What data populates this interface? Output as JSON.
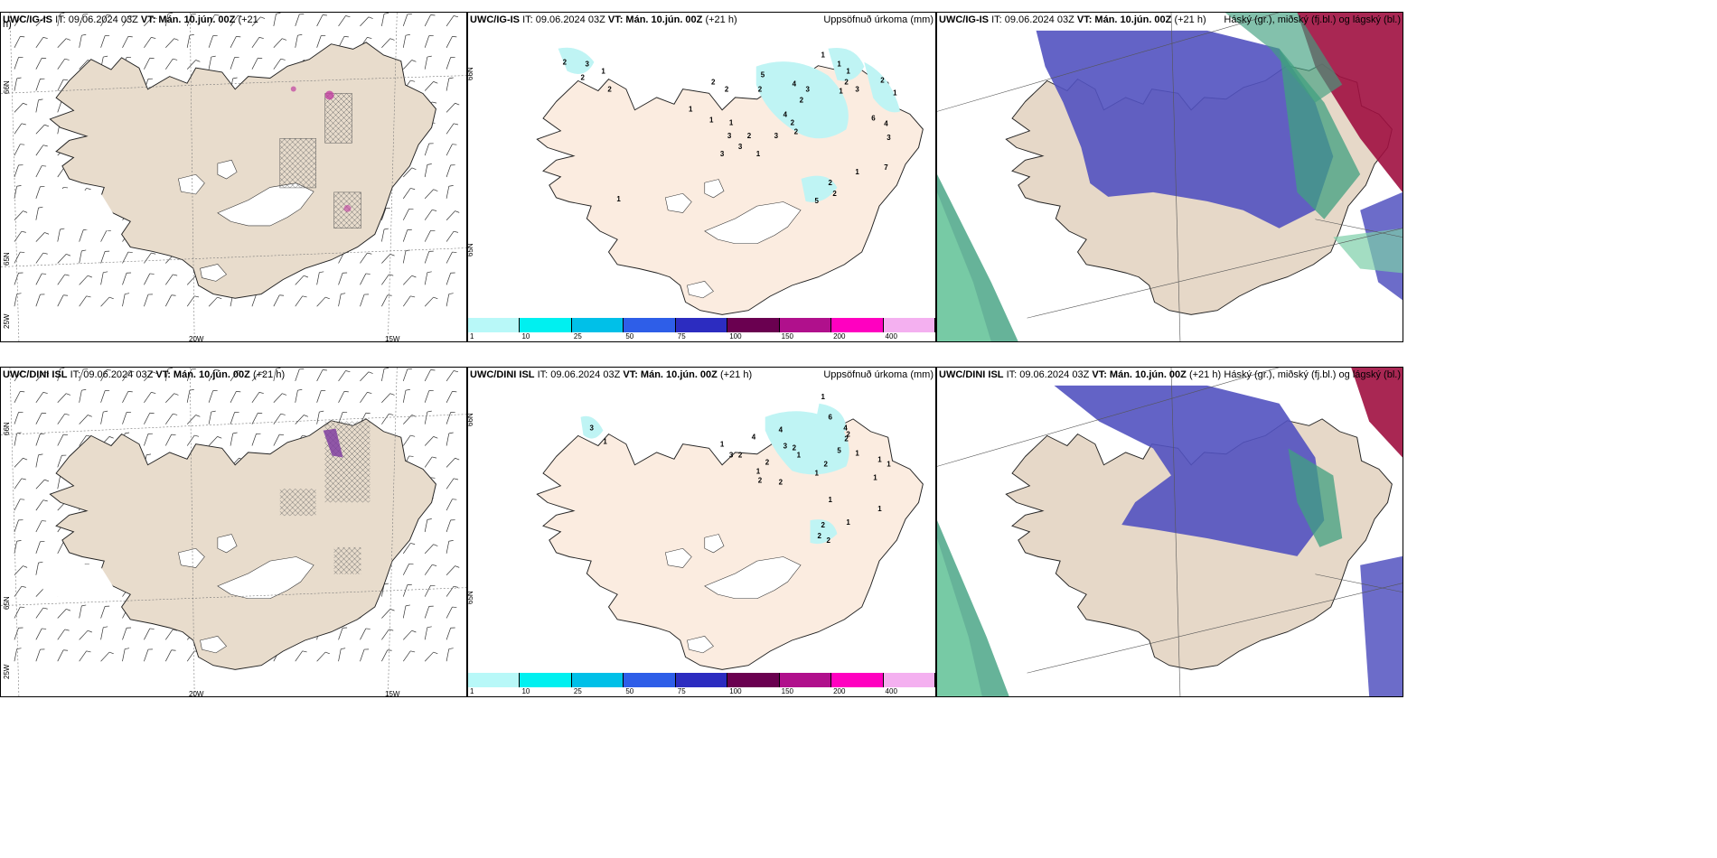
{
  "panels": {
    "wind_top": {
      "model_code": "UWC/IG-IS",
      "it_label": "IT: 09.06.2024 03Z",
      "vt_label": "VT: Mán. 10.jún. 00Z",
      "lead": "(+21",
      "lead2": "h)"
    },
    "precip_top": {
      "model_code": "UWC/IG-IS",
      "it_label": "IT: 09.06.2024 03Z",
      "vt_label": "VT: Mán. 10.jún. 00Z",
      "lead": "(+21 h)",
      "field_title": "Uppsöfnuð úrkoma (mm)"
    },
    "cloud_top": {
      "model_code": "UWC/IG-IS",
      "it_label": "IT: 09.06.2024 03Z",
      "vt_label": "VT: Mán. 10.jún. 00Z",
      "lead": "(+21 h)",
      "field_title": "Háský (gr.), miðský (fj.bl.) og lágský (bl.)"
    },
    "wind_bottom": {
      "model_code": "UWC/DINI ISL",
      "it_label": "IT: 09.06.2024 03Z",
      "vt_label": "VT: Mán. 10.jún. 00Z",
      "lead": "(+21 h)"
    },
    "precip_bottom": {
      "model_code": "UWC/DINI ISL",
      "it_label": "IT: 09.06.2024 03Z",
      "vt_label": "VT: Mán. 10.jún. 00Z",
      "lead": "(+21 h)",
      "field_title": "Uppsöfnuð úrkoma (mm)"
    },
    "cloud_bottom": {
      "model_code": "UWC/DINI ISL",
      "it_label": "IT: 09.06.2024 03Z",
      "vt_label": "VT: Mán. 10.jún. 00Z",
      "lead": "(+21 h)",
      "field_title": "Háský (gr.), miðský (fj.bl.) og lágský (bl.)"
    }
  },
  "axis_labels": {
    "lat_66": "66N",
    "lat_65": "65N",
    "lon_25": "25W",
    "lon_20": "20W",
    "lon_15": "15W",
    "lat_66_right": "66N",
    "lat_65_right": "65N"
  },
  "colorbar": {
    "ticks": [
      "1",
      "10",
      "25",
      "50",
      "75",
      "100",
      "150",
      "200",
      "400"
    ],
    "colors": [
      "#b8f8f8",
      "#00f0f0",
      "#00c0e8",
      "#2e5ee8",
      "#2c2cc0",
      "#6a0050",
      "#b0108c",
      "#ff00c0",
      "#f4b0f0"
    ]
  },
  "precip_labels_top": [
    "2",
    "3",
    "2",
    "1",
    "2",
    "1",
    "2",
    "2",
    "1",
    "1",
    "5",
    "2",
    "4",
    "3",
    "2",
    "4",
    "2",
    "2",
    "3",
    "1",
    "1",
    "1",
    "2",
    "1",
    "3",
    "2",
    "1",
    "6",
    "4",
    "3",
    "7",
    "1",
    "2",
    "2",
    "5",
    "3",
    "2",
    "3",
    "3",
    "1",
    "1"
  ],
  "precip_labels_bottom": [
    "1",
    "6",
    "4",
    "2",
    "2",
    "4",
    "3",
    "2",
    "1",
    "2",
    "1",
    "3",
    "4",
    "1",
    "2",
    "2",
    "2",
    "1",
    "2",
    "1",
    "5",
    "1",
    "1",
    "1",
    "1",
    "1",
    "2",
    "2",
    "2",
    "1",
    "3",
    "1"
  ],
  "colors": {
    "land_wind": "#e8dccc",
    "land_precip": "#fbece0",
    "land_cloud": "#e6d8c8",
    "high_cloud": "#40a080",
    "mid_cloud": "#5252c0",
    "low_cloud": "#a01040",
    "light_precip": "#bff4f4"
  }
}
